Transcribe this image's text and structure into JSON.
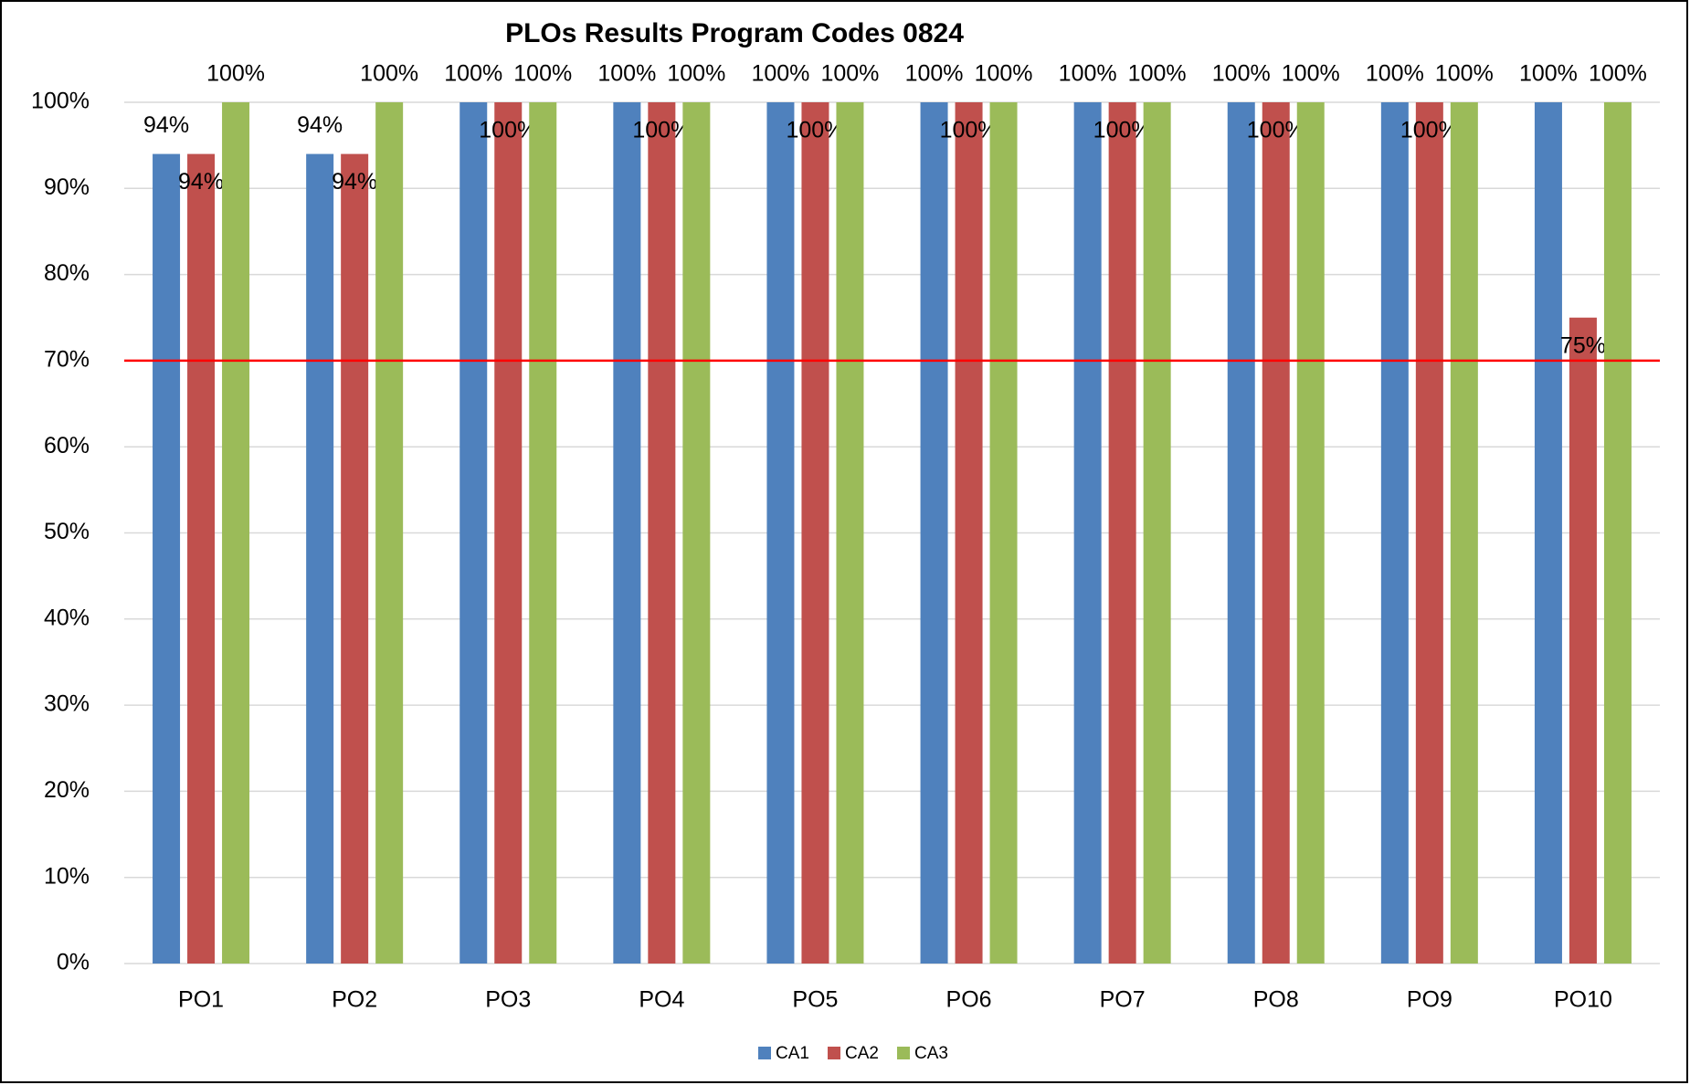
{
  "chart_data": {
    "type": "bar",
    "title": "PLOs Results Program Codes 0824",
    "categories": [
      "PO1",
      "PO2",
      "PO3",
      "PO4",
      "PO5",
      "PO6",
      "PO7",
      "PO8",
      "PO9",
      "PO10"
    ],
    "series": [
      {
        "name": "CA1",
        "color": "#4f81bd",
        "values": [
          94,
          94,
          100,
          100,
          100,
          100,
          100,
          100,
          100,
          100
        ],
        "value_labels": [
          "94%",
          "94%",
          "100%",
          "100%",
          "100%",
          "100%",
          "100%",
          "100%",
          "100%",
          "100%"
        ]
      },
      {
        "name": "CA2",
        "color": "#c0504d",
        "values": [
          94,
          94,
          100,
          100,
          100,
          100,
          100,
          100,
          100,
          75
        ],
        "value_labels": [
          "94%",
          "94%",
          "100%",
          "100%",
          "100%",
          "100%",
          "100%",
          "100%",
          "100%",
          "75%"
        ]
      },
      {
        "name": "CA3",
        "color": "#9bbb59",
        "values": [
          100,
          100,
          100,
          100,
          100,
          100,
          100,
          100,
          100,
          100
        ],
        "value_labels": [
          "100%",
          "100%",
          "100%",
          "100%",
          "100%",
          "100%",
          "100%",
          "100%",
          "100%",
          "100%"
        ]
      }
    ],
    "ylim": [
      0,
      100
    ],
    "yticks": [
      {
        "value": 0,
        "label": "0%"
      },
      {
        "value": 10,
        "label": "10%"
      },
      {
        "value": 20,
        "label": "20%"
      },
      {
        "value": 30,
        "label": "30%"
      },
      {
        "value": 40,
        "label": "40%"
      },
      {
        "value": 50,
        "label": "50%"
      },
      {
        "value": 60,
        "label": "60%"
      },
      {
        "value": 70,
        "label": "70%"
      },
      {
        "value": 80,
        "label": "80%"
      },
      {
        "value": 90,
        "label": "90%"
      },
      {
        "value": 100,
        "label": "100%"
      }
    ],
    "grid": true,
    "reference_line": {
      "value": 70,
      "color": "#ff0000"
    },
    "legend": "bottom"
  }
}
